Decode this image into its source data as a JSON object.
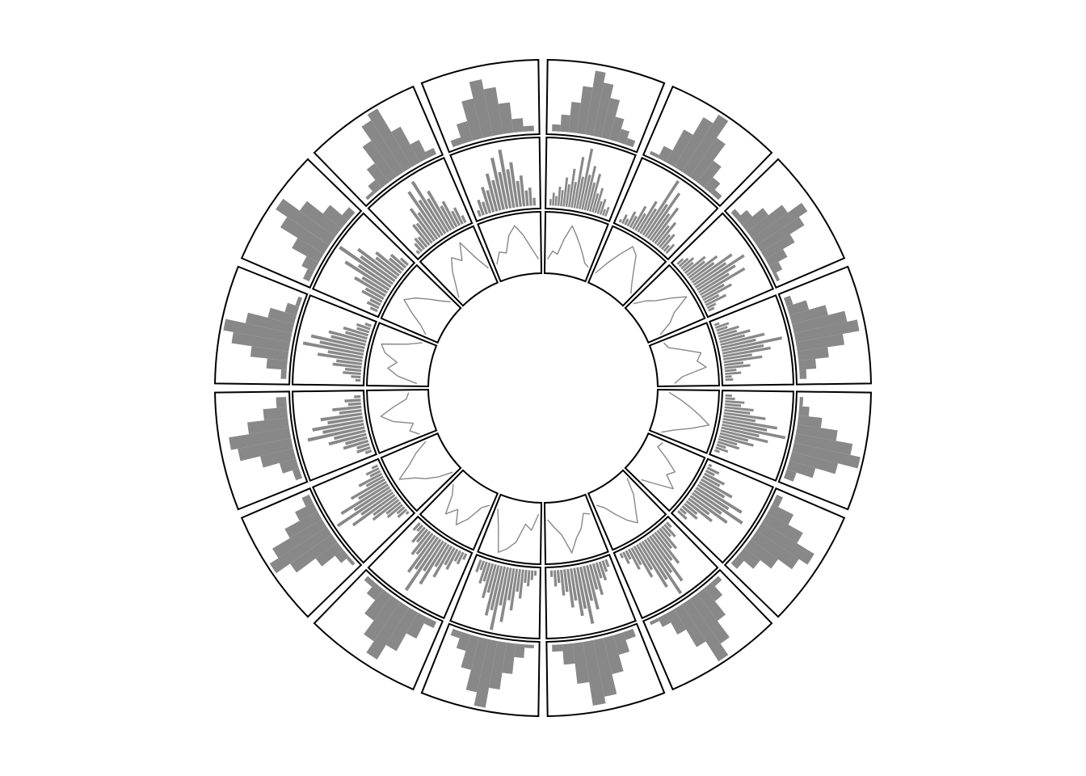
{
  "chart_data": {
    "type": "circular-histogram-line",
    "sectors": 16,
    "colors": {
      "mark": "#888888",
      "border": "#000000",
      "background": "#ffffff"
    },
    "tracks": [
      {
        "name": "",
        "type": "histogram",
        "ylim": [
          0,
          1
        ],
        "sectors": [
          [
            0.1,
            0.25,
            0.45,
            0.7,
            0.95,
            0.8,
            0.6,
            0.35,
            0.2,
            0.1
          ],
          [
            0.05,
            0.2,
            0.55,
            0.85,
            1.0,
            0.7,
            0.4,
            0.2,
            0.08
          ],
          [
            0.08,
            0.2,
            0.4,
            0.65,
            0.9,
            0.75,
            0.5,
            0.3,
            0.15,
            0.05
          ],
          [
            0.1,
            0.3,
            0.55,
            0.8,
            0.95,
            0.7,
            0.45,
            0.25,
            0.1
          ],
          [
            0.05,
            0.15,
            0.35,
            0.6,
            0.85,
            1.0,
            0.7,
            0.4,
            0.15
          ],
          [
            0.1,
            0.35,
            0.6,
            0.9,
            0.75,
            0.5,
            0.3,
            0.12
          ],
          [
            0.08,
            0.25,
            0.5,
            0.8,
            1.0,
            0.65,
            0.35,
            0.15,
            0.05
          ],
          [
            0.12,
            0.3,
            0.55,
            0.85,
            0.95,
            0.6,
            0.3,
            0.1
          ],
          [
            0.05,
            0.2,
            0.45,
            0.7,
            1.0,
            0.8,
            0.5,
            0.25,
            0.1
          ],
          [
            0.1,
            0.35,
            0.65,
            0.9,
            0.7,
            0.45,
            0.2,
            0.08
          ],
          [
            0.05,
            0.15,
            0.4,
            0.75,
            1.0,
            0.85,
            0.55,
            0.3,
            0.12
          ],
          [
            0.1,
            0.25,
            0.5,
            0.8,
            0.9,
            0.6,
            0.35,
            0.15
          ],
          [
            0.08,
            0.3,
            0.55,
            0.85,
            1.0,
            0.7,
            0.4,
            0.18,
            0.06
          ],
          [
            0.1,
            0.2,
            0.45,
            0.75,
            0.95,
            0.65,
            0.35,
            0.12
          ],
          [
            0.05,
            0.15,
            0.35,
            0.65,
            0.9,
            1.0,
            0.6,
            0.3,
            0.1
          ],
          [
            0.1,
            0.3,
            0.6,
            0.85,
            0.7,
            0.45,
            0.2,
            0.08
          ]
        ]
      },
      {
        "name": "",
        "type": "histogram",
        "ylim": [
          0,
          1
        ],
        "sectors": [
          [
            0.1,
            0.2,
            0.15,
            0.3,
            0.25,
            0.45,
            0.35,
            0.6,
            0.4,
            0.8,
            0.5,
            0.95,
            0.55,
            0.7,
            0.45,
            0.6,
            0.3,
            0.4,
            0.2,
            0.25,
            0.1,
            0.15
          ],
          [
            0.05,
            0.15,
            0.1,
            0.25,
            0.2,
            0.4,
            0.3,
            0.55,
            0.45,
            1.0,
            0.6,
            0.85,
            0.5,
            0.65,
            0.35,
            0.45,
            0.25,
            0.3,
            0.12,
            0.18
          ],
          [
            0.12,
            0.18,
            0.25,
            0.2,
            0.4,
            0.35,
            0.55,
            0.45,
            0.75,
            0.6,
            0.9,
            0.7,
            0.55,
            0.8,
            0.4,
            0.5,
            0.25,
            0.35,
            0.15,
            0.1
          ],
          [
            0.08,
            0.22,
            0.18,
            0.35,
            0.3,
            0.5,
            0.4,
            0.7,
            0.55,
            0.95,
            0.65,
            0.75,
            0.45,
            0.6,
            0.3,
            0.4,
            0.18,
            0.25,
            0.1,
            0.12
          ],
          [
            0.1,
            0.15,
            0.3,
            0.25,
            0.45,
            0.4,
            0.65,
            0.5,
            0.85,
            0.7,
            1.0,
            0.6,
            0.75,
            0.45,
            0.55,
            0.3,
            0.35,
            0.15,
            0.2,
            0.08
          ],
          [
            0.05,
            0.2,
            0.15,
            0.35,
            0.3,
            0.55,
            0.45,
            0.8,
            0.6,
            0.9,
            0.55,
            0.7,
            0.4,
            0.5,
            0.25,
            0.3,
            0.12,
            0.18
          ],
          [
            0.1,
            0.25,
            0.2,
            0.4,
            0.35,
            0.6,
            0.5,
            0.85,
            0.65,
            1.0,
            0.7,
            0.8,
            0.45,
            0.55,
            0.3,
            0.35,
            0.15,
            0.2,
            0.08
          ],
          [
            0.12,
            0.18,
            0.3,
            0.25,
            0.5,
            0.4,
            0.7,
            0.55,
            0.9,
            0.65,
            0.75,
            0.5,
            0.6,
            0.35,
            0.4,
            0.2,
            0.25,
            0.1
          ],
          [
            0.08,
            0.15,
            0.25,
            0.2,
            0.45,
            0.35,
            0.65,
            0.5,
            0.85,
            0.6,
            1.0,
            0.7,
            0.8,
            0.45,
            0.55,
            0.3,
            0.35,
            0.15,
            0.2
          ],
          [
            0.1,
            0.2,
            0.18,
            0.35,
            0.3,
            0.55,
            0.4,
            0.75,
            0.55,
            0.95,
            0.6,
            0.7,
            0.4,
            0.45,
            0.25,
            0.3,
            0.12,
            0.15
          ],
          [
            0.05,
            0.18,
            0.15,
            0.3,
            0.28,
            0.5,
            0.45,
            0.8,
            0.6,
            1.0,
            0.65,
            0.85,
            0.5,
            0.6,
            0.3,
            0.4,
            0.18,
            0.22,
            0.1
          ],
          [
            0.1,
            0.22,
            0.2,
            0.4,
            0.35,
            0.6,
            0.5,
            0.9,
            0.65,
            0.8,
            0.55,
            0.65,
            0.35,
            0.45,
            0.2,
            0.25,
            0.1
          ],
          [
            0.08,
            0.15,
            0.28,
            0.25,
            0.45,
            0.4,
            0.7,
            0.55,
            0.95,
            0.7,
            0.85,
            0.55,
            0.6,
            0.35,
            0.4,
            0.2,
            0.22,
            0.1
          ],
          [
            0.12,
            0.2,
            0.18,
            0.35,
            0.32,
            0.55,
            0.45,
            0.8,
            0.6,
            1.0,
            0.65,
            0.75,
            0.45,
            0.5,
            0.28,
            0.3,
            0.15
          ],
          [
            0.06,
            0.16,
            0.22,
            0.2,
            0.4,
            0.38,
            0.62,
            0.5,
            0.85,
            0.65,
            0.95,
            0.6,
            0.7,
            0.4,
            0.45,
            0.25,
            0.28,
            0.12
          ],
          [
            0.1,
            0.25,
            0.2,
            0.42,
            0.35,
            0.6,
            0.48,
            0.82,
            0.58,
            0.92,
            0.6,
            0.7,
            0.4,
            0.48,
            0.24,
            0.28,
            0.12
          ]
        ]
      },
      {
        "name": "",
        "type": "line",
        "ylim": [
          0,
          1
        ],
        "sectors": [
          [
            0.2,
            0.35,
            0.3,
            0.6,
            0.85,
            0.7,
            0.55,
            0.4,
            0.25,
            0.2
          ],
          [
            0.15,
            0.4,
            0.65,
            0.9,
            0.8,
            0.55,
            0.35,
            0.2
          ],
          [
            0.1,
            0.3,
            0.45,
            0.7,
            0.95,
            0.6,
            0.45,
            0.2
          ],
          [
            0.2,
            0.25,
            0.5,
            0.8,
            0.7,
            0.85,
            0.4,
            0.25
          ],
          [
            0.15,
            0.35,
            0.55,
            0.75,
            0.95,
            0.65,
            0.35,
            0.15
          ],
          [
            0.25,
            0.2,
            0.45,
            0.7,
            0.6,
            0.85,
            0.55,
            0.3
          ],
          [
            0.1,
            0.4,
            0.6,
            0.85,
            0.7,
            0.5,
            0.3,
            0.2
          ],
          [
            0.3,
            0.25,
            0.5,
            0.65,
            0.9,
            0.55,
            0.4,
            0.25
          ],
          [
            0.15,
            0.45,
            0.35,
            0.7,
            0.85,
            0.95,
            0.5,
            0.2
          ],
          [
            0.2,
            0.3,
            0.6,
            0.8,
            0.55,
            0.75,
            0.4,
            0.25
          ],
          [
            0.1,
            0.35,
            0.55,
            0.7,
            0.95,
            0.65,
            0.45,
            0.2
          ],
          [
            0.25,
            0.4,
            0.3,
            0.65,
            0.85,
            0.6,
            0.35,
            0.3
          ],
          [
            0.15,
            0.5,
            0.7,
            0.55,
            0.8,
            0.9,
            0.45,
            0.2
          ],
          [
            0.2,
            0.35,
            0.6,
            0.85,
            0.7,
            0.5,
            0.3,
            0.15
          ],
          [
            0.1,
            0.3,
            0.55,
            0.75,
            0.6,
            0.9,
            0.5,
            0.25
          ],
          [
            0.25,
            0.45,
            0.4,
            0.7,
            0.85,
            0.65,
            0.4,
            0.2
          ]
        ]
      }
    ]
  }
}
